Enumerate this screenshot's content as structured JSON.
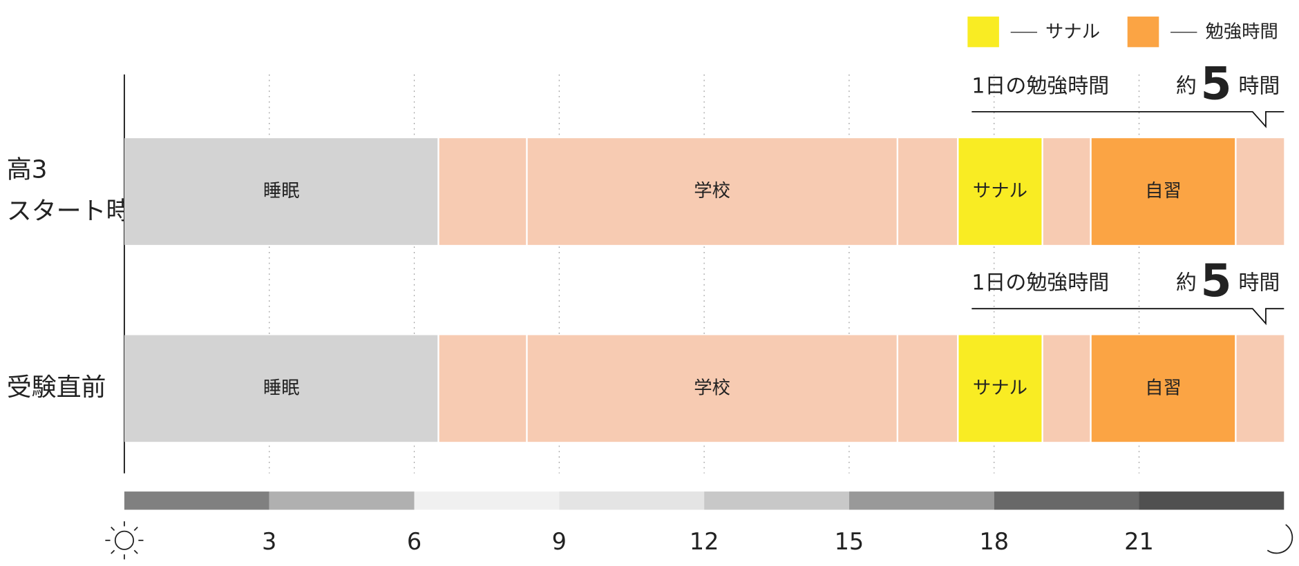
{
  "chart_data": {
    "type": "timeline",
    "xlim": [
      0,
      24
    ],
    "xticks": [
      3,
      6,
      9,
      12,
      15,
      18,
      21
    ],
    "grid": true,
    "legend": [
      {
        "name": "サナル",
        "color": "#f9ec23"
      },
      {
        "name": "勉強時間",
        "color": "#fba444"
      }
    ],
    "period_colors": [
      "#808080",
      "#b0b0b0",
      "#f0f0f0",
      "#e4e4e4",
      "#c8c8c8",
      "#999999",
      "#686868",
      "#505050"
    ],
    "rows": [
      {
        "label": [
          "高3",
          "スタート時"
        ],
        "annotation": {
          "text": "1日の勉強時間",
          "prefix": "約",
          "value": 5,
          "suffix": "時間"
        },
        "segments": [
          {
            "label": "睡眠",
            "start": 0,
            "end": 6.5,
            "color": "#d3d3d3"
          },
          {
            "label": null,
            "start": 6.5,
            "end": 8.33,
            "color": "#f7cbb2"
          },
          {
            "label": "学校",
            "start": 8.33,
            "end": 16,
            "color": "#f7cbb2"
          },
          {
            "label": null,
            "start": 16,
            "end": 17.25,
            "color": "#f7cbb2"
          },
          {
            "label": "サナル",
            "start": 17.25,
            "end": 19,
            "color": "#f9ec23"
          },
          {
            "label": null,
            "start": 19,
            "end": 20,
            "color": "#f7cbb2"
          },
          {
            "label": "自習",
            "start": 20,
            "end": 23,
            "color": "#fba444"
          },
          {
            "label": null,
            "start": 23,
            "end": 24,
            "color": "#f7cbb2"
          }
        ]
      },
      {
        "label": [
          "受験直前"
        ],
        "annotation": {
          "text": "1日の勉強時間",
          "prefix": "約",
          "value": 5,
          "suffix": "時間"
        },
        "segments": [
          {
            "label": "睡眠",
            "start": 0,
            "end": 6.5,
            "color": "#d3d3d3"
          },
          {
            "label": null,
            "start": 6.5,
            "end": 8.33,
            "color": "#f7cbb2"
          },
          {
            "label": "学校",
            "start": 8.33,
            "end": 16,
            "color": "#f7cbb2"
          },
          {
            "label": null,
            "start": 16,
            "end": 17.25,
            "color": "#f7cbb2"
          },
          {
            "label": "サナル",
            "start": 17.25,
            "end": 19,
            "color": "#f9ec23"
          },
          {
            "label": null,
            "start": 19,
            "end": 20,
            "color": "#f7cbb2"
          },
          {
            "label": "自習",
            "start": 20,
            "end": 23,
            "color": "#fba444"
          },
          {
            "label": null,
            "start": 23,
            "end": 24,
            "color": "#f7cbb2"
          }
        ]
      }
    ]
  }
}
